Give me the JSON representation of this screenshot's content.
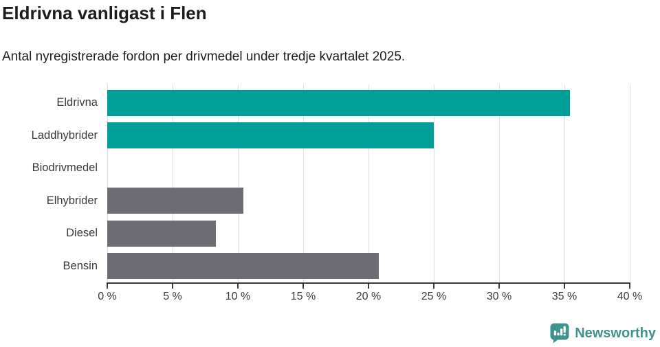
{
  "chart_data": {
    "type": "bar",
    "orientation": "horizontal",
    "title": "Eldrivna vanligast i Flen",
    "subtitle": "Antal nyregistrerade fordon per drivmedel under tredje kvartalet 2025.",
    "categories": [
      "Eldrivna",
      "Laddhybrider",
      "Biodrivmedel",
      "Elhybrider",
      "Diesel",
      "Bensin"
    ],
    "values": [
      35.4,
      25.0,
      0,
      10.4,
      8.3,
      20.8
    ],
    "unit": "%",
    "bar_colors": [
      "#00a099",
      "#00a099",
      "#6c6c72",
      "#6c6c72",
      "#6c6c72",
      "#6c6c72"
    ],
    "xlim": [
      0,
      40
    ],
    "x_ticks": [
      0,
      5,
      10,
      15,
      20,
      25,
      30,
      35,
      40
    ],
    "x_tick_labels": [
      "0 %",
      "5 %",
      "10 %",
      "15 %",
      "20 %",
      "25 %",
      "30 %",
      "35 %",
      "40 %"
    ],
    "grid": true,
    "legend": false
  },
  "colors": {
    "teal": "#00a099",
    "gray": "#6c6c72",
    "grid": "#e0e0e0",
    "axis": "#3a3a3a",
    "text": "#1d1d1b"
  },
  "branding": {
    "wordmark": "Newsworthy",
    "logo_icon": "newsworthy-speech-bubble-chart-icon",
    "color": "#3f938e"
  }
}
